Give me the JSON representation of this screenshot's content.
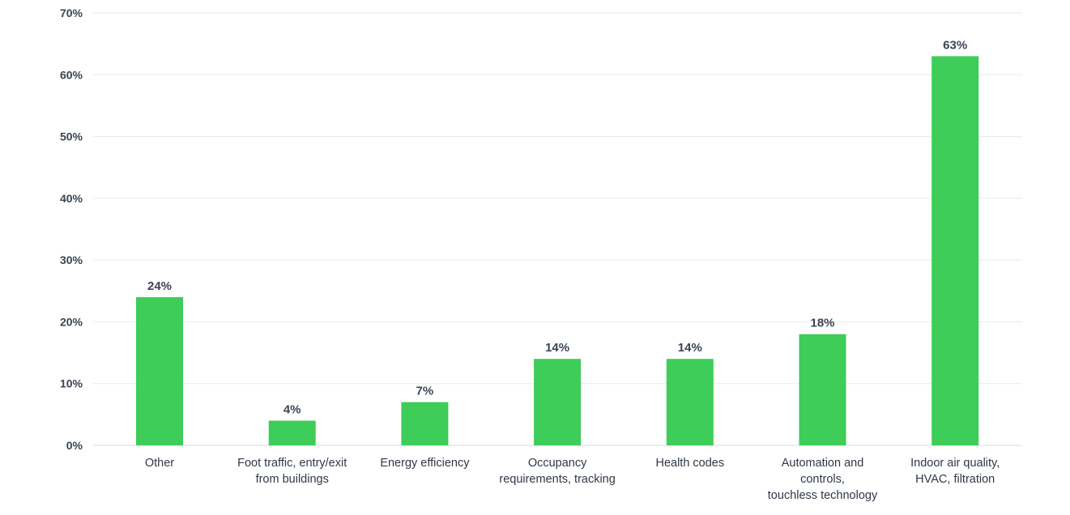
{
  "chart_data": {
    "type": "bar",
    "categories": [
      [
        "Other"
      ],
      [
        "Foot traffic, entry/exit",
        "from buildings"
      ],
      [
        "Energy efficiency"
      ],
      [
        "Occupancy",
        "requirements, tracking"
      ],
      [
        "Health codes"
      ],
      [
        "Automation and",
        "controls,",
        "touchless technology"
      ],
      [
        "Indoor air quality,",
        "HVAC, filtration"
      ]
    ],
    "values": [
      24,
      4,
      7,
      14,
      14,
      18,
      63
    ],
    "data_labels": [
      "24%",
      "4%",
      "7%",
      "14%",
      "14%",
      "18%",
      "63%"
    ],
    "yticks": [
      0,
      10,
      20,
      30,
      40,
      50,
      60,
      70
    ],
    "ytick_labels": [
      "0%",
      "10%",
      "20%",
      "30%",
      "40%",
      "50%",
      "60%",
      "70%"
    ],
    "ylim": [
      0,
      70
    ],
    "grid": true,
    "bar_color": "#3ecd58",
    "title": "",
    "xlabel": "",
    "ylabel": ""
  }
}
